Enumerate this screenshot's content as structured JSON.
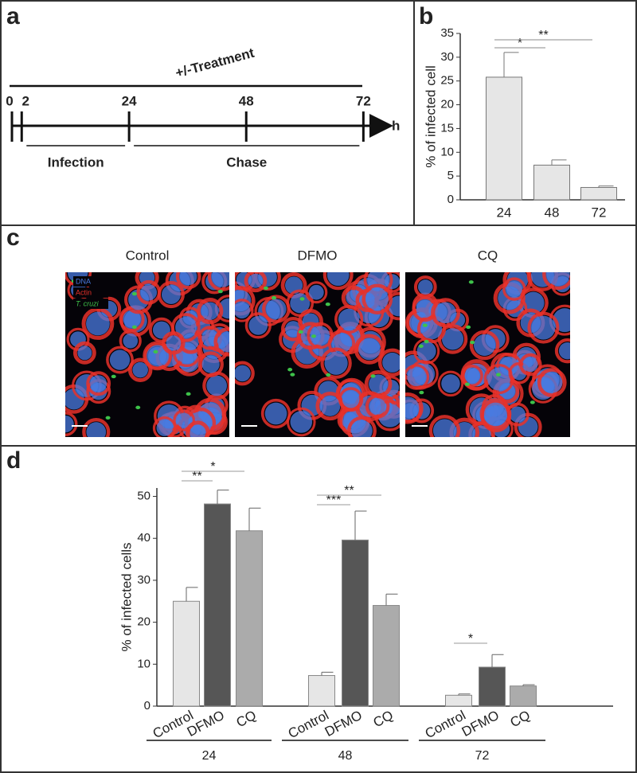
{
  "panel_labels": [
    "a",
    "b",
    "c",
    "d"
  ],
  "timeline": {
    "treatment_label": "+/-Treatment",
    "ticks": [
      0,
      2,
      24,
      48,
      72
    ],
    "unit": "h",
    "phases": [
      {
        "label": "Infection",
        "from": 2,
        "to": 24
      },
      {
        "label": "Chase",
        "from": 24,
        "to": 72
      }
    ]
  },
  "micrographs": {
    "panels": [
      "Control",
      "DFMO",
      "CQ"
    ],
    "channels": [
      {
        "name": "DNA",
        "color": "#4a7be0"
      },
      {
        "name": "Actin",
        "color": "#e8312a"
      },
      {
        "name": "T. cruzi",
        "color": "#3ec24a"
      }
    ]
  },
  "chart_data": [
    {
      "type": "bar",
      "ylabel": "% of infected cell",
      "categories": [
        "24",
        "48",
        "72"
      ],
      "values": [
        25.8,
        7.3,
        2.6
      ],
      "errors": [
        5.2,
        1.1,
        0.3
      ],
      "color": "#e6e6e6",
      "ylim": [
        0,
        35
      ],
      "yticks": [
        0,
        5,
        10,
        15,
        20,
        25,
        30,
        35
      ],
      "significance": [
        {
          "label": "*",
          "between": [
            "24",
            "48"
          ]
        },
        {
          "label": "**",
          "between": [
            "24",
            "72"
          ]
        }
      ]
    },
    {
      "type": "grouped_bar",
      "ylabel": "% of infected cells",
      "categories": [
        "24",
        "48",
        "72"
      ],
      "series": [
        {
          "name": "Control",
          "color": "#e6e6e6",
          "values": [
            25,
            7.3,
            2.6
          ],
          "errors": [
            3.3,
            0.8,
            0.3
          ]
        },
        {
          "name": "DFMO",
          "color": "#565656",
          "values": [
            48.2,
            39.6,
            9.3
          ],
          "errors": [
            3.3,
            6.9,
            3
          ]
        },
        {
          "name": "CQ",
          "color": "#ababab",
          "values": [
            41.8,
            24,
            4.8
          ],
          "errors": [
            5.4,
            2.7,
            0.3
          ]
        }
      ],
      "ylim": [
        0,
        52
      ],
      "yticks": [
        0,
        10,
        20,
        30,
        40,
        50
      ],
      "significance": [
        {
          "label": "**",
          "category": "24",
          "between": [
            "Control",
            "DFMO"
          ]
        },
        {
          "label": "*",
          "category": "24",
          "between": [
            "Control",
            "CQ"
          ]
        },
        {
          "label": "***",
          "category": "48",
          "between": [
            "Control",
            "DFMO"
          ]
        },
        {
          "label": "**",
          "category": "48",
          "between": [
            "Control",
            "CQ"
          ]
        },
        {
          "label": "*",
          "category": "72",
          "between": [
            "Control",
            "DFMO"
          ]
        }
      ]
    }
  ]
}
